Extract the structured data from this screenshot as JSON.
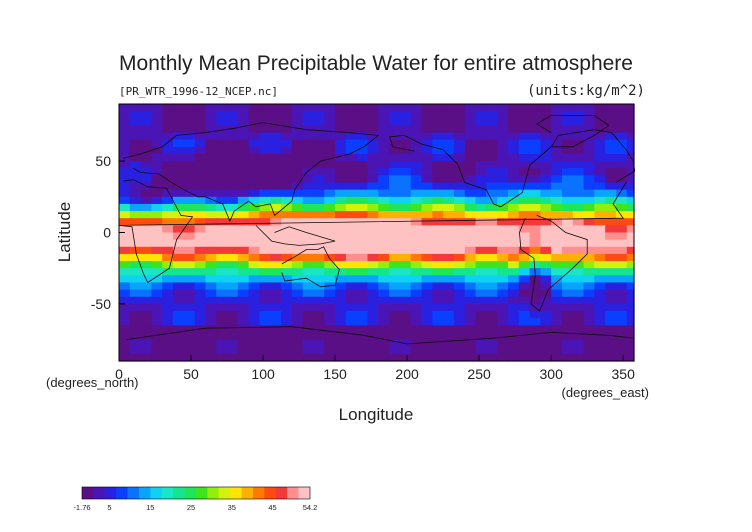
{
  "chart_data": {
    "type": "heatmap",
    "title": "Monthly Mean Precipitable Water for entire atmosphere",
    "subtitle_left": "[PR_WTR_1996-12_NCEP.nc]",
    "subtitle_right": "(units:kg/m^2)",
    "xlabel": "Longitude",
    "ylabel": "Latitude",
    "x_unit_label": "(degrees_east)",
    "y_unit_label": "(degrees_north)",
    "xlim": [
      0,
      357.5
    ],
    "ylim": [
      -90,
      90
    ],
    "x_ticks": [
      0,
      50,
      100,
      150,
      200,
      250,
      300,
      350
    ],
    "y_ticks": [
      -50,
      0,
      50
    ],
    "colorbar": {
      "min": -1.76,
      "max": 54.2,
      "tick_labels": [
        "-1.76",
        "5",
        "15",
        "25",
        "35",
        "45",
        "54.2"
      ],
      "tick_values": [
        -1.76,
        5,
        15,
        25,
        35,
        45,
        54.2
      ],
      "colors": [
        "#5b0f86",
        "#4b14b4",
        "#2a21e0",
        "#0b3fff",
        "#0a72ff",
        "#08a4ff",
        "#0fd2f2",
        "#19e6c4",
        "#13e68e",
        "#1ee659",
        "#3fe51c",
        "#92ef0a",
        "#d6f20c",
        "#ffe500",
        "#ffb100",
        "#ff7a00",
        "#ff4a12",
        "#f23a3a",
        "#ff8f8f",
        "#ffc2c2"
      ]
    }
  },
  "colors": {
    "background": "#ffffff",
    "frame": "#000000",
    "coastline": "#0d0d0d"
  }
}
